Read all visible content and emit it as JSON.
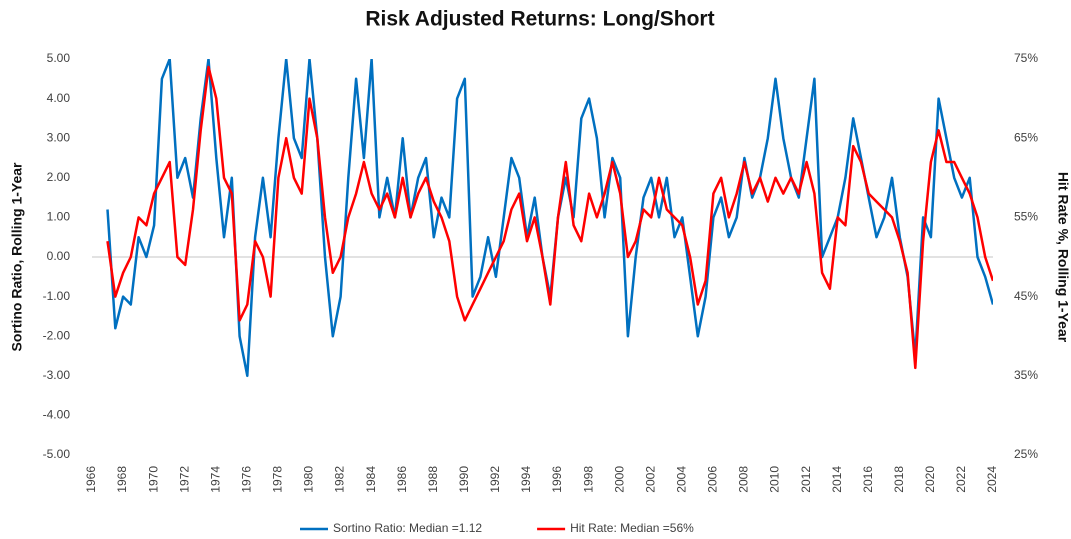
{
  "chart_data": {
    "type": "line",
    "title": "Risk Adjusted Returns: Long/Short",
    "y_label": "Sortino Ratio, Rolling 1-Year",
    "y2_label": "Hit Rate %, Rolling 1-Year",
    "xlim": [
      1966,
      2024
    ],
    "xticks": [
      1966,
      1968,
      1970,
      1972,
      1974,
      1976,
      1978,
      1980,
      1982,
      1984,
      1986,
      1988,
      1990,
      1992,
      1994,
      1996,
      1998,
      2000,
      2002,
      2004,
      2006,
      2008,
      2010,
      2012,
      2014,
      2016,
      2018,
      2020,
      2022,
      2024
    ],
    "ylim": [
      -5,
      5
    ],
    "yticks": [
      {
        "value": -5,
        "label": "-5.00"
      },
      {
        "value": -4,
        "label": "-4.00"
      },
      {
        "value": -3,
        "label": "-3.00"
      },
      {
        "value": -2,
        "label": "-2.00"
      },
      {
        "value": -1,
        "label": "-1.00"
      },
      {
        "value": 0,
        "label": "0.00"
      },
      {
        "value": 1,
        "label": "1.00"
      },
      {
        "value": 2,
        "label": "2.00"
      },
      {
        "value": 3,
        "label": "3.00"
      },
      {
        "value": 4,
        "label": "4.00"
      },
      {
        "value": 5,
        "label": "5.00"
      }
    ],
    "y2lim": [
      25,
      75
    ],
    "y2ticks": [
      {
        "value": 25,
        "label": "25%"
      },
      {
        "value": 35,
        "label": "35%"
      },
      {
        "value": 45,
        "label": "45%"
      },
      {
        "value": 55,
        "label": "55%"
      },
      {
        "value": 65,
        "label": "65%"
      },
      {
        "value": 75,
        "label": "75%"
      }
    ],
    "legend": "bottom",
    "x": [
      1967.0,
      1967.5,
      1968.0,
      1968.5,
      1969.0,
      1969.5,
      1970.0,
      1970.5,
      1971.0,
      1971.5,
      1972.0,
      1972.5,
      1973.0,
      1973.5,
      1974.0,
      1974.5,
      1975.0,
      1975.5,
      1976.0,
      1976.5,
      1977.0,
      1977.5,
      1978.0,
      1978.5,
      1979.0,
      1979.5,
      1980.0,
      1980.5,
      1981.0,
      1981.5,
      1982.0,
      1982.5,
      1983.0,
      1983.5,
      1984.0,
      1984.5,
      1985.0,
      1985.5,
      1986.0,
      1986.5,
      1987.0,
      1987.5,
      1988.0,
      1988.5,
      1989.0,
      1989.5,
      1990.0,
      1990.5,
      1991.0,
      1991.5,
      1992.0,
      1992.5,
      1993.0,
      1993.5,
      1994.0,
      1994.5,
      1995.0,
      1995.5,
      1996.0,
      1996.5,
      1997.0,
      1997.5,
      1998.0,
      1998.5,
      1999.0,
      1999.5,
      2000.0,
      2000.5,
      2001.0,
      2001.5,
      2002.0,
      2002.5,
      2003.0,
      2003.5,
      2004.0,
      2004.5,
      2005.0,
      2005.5,
      2006.0,
      2006.5,
      2007.0,
      2007.5,
      2008.0,
      2008.5,
      2009.0,
      2009.5,
      2010.0,
      2010.5,
      2011.0,
      2011.5,
      2012.0,
      2012.5,
      2013.0,
      2013.5,
      2014.0,
      2014.5,
      2015.0,
      2015.5,
      2016.0,
      2016.5,
      2017.0,
      2017.5,
      2018.0,
      2018.5,
      2019.0,
      2019.5,
      2020.0,
      2020.5,
      2021.0,
      2021.5,
      2022.0,
      2022.5,
      2023.0,
      2023.5,
      2024.0
    ],
    "series": [
      {
        "name": "Sortino Ratio: Median =1.12",
        "color": "#0070c0",
        "axis": "y",
        "values": [
          1.2,
          -1.8,
          -1.0,
          -1.2,
          0.5,
          0.0,
          0.8,
          4.5,
          5.0,
          2.0,
          2.5,
          1.5,
          3.5,
          5.0,
          2.5,
          0.5,
          2.0,
          -2.0,
          -3.0,
          0.5,
          2.0,
          0.5,
          3.0,
          5.0,
          3.0,
          2.5,
          5.0,
          3.0,
          0.0,
          -2.0,
          -1.0,
          2.0,
          4.5,
          2.5,
          5.0,
          1.0,
          2.0,
          1.0,
          3.0,
          1.0,
          2.0,
          2.5,
          0.5,
          1.5,
          1.0,
          4.0,
          4.5,
          -1.0,
          -0.5,
          0.5,
          -0.5,
          1.0,
          2.5,
          2.0,
          0.5,
          1.5,
          0.0,
          -1.0,
          1.0,
          2.0,
          1.0,
          3.5,
          4.0,
          3.0,
          1.0,
          2.5,
          2.0,
          -2.0,
          0.0,
          1.5,
          2.0,
          1.0,
          2.0,
          0.5,
          1.0,
          -0.5,
          -2.0,
          -1.0,
          1.0,
          1.5,
          0.5,
          1.0,
          2.5,
          1.5,
          2.0,
          3.0,
          4.5,
          3.0,
          2.0,
          1.5,
          3.0,
          4.5,
          0.0,
          0.5,
          1.0,
          2.0,
          3.5,
          2.5,
          1.5,
          0.5,
          1.0,
          2.0,
          0.5,
          -0.5,
          -2.5,
          1.0,
          0.5,
          4.0,
          3.0,
          2.0,
          1.5,
          2.0,
          0.0,
          -0.5,
          -1.2
        ]
      },
      {
        "name": "Hit Rate: Median =56%",
        "color": "#ff0000",
        "axis": "y2",
        "values": [
          52,
          45,
          48,
          50,
          55,
          54,
          58,
          60,
          62,
          50,
          49,
          56,
          66,
          74,
          70,
          60,
          58,
          42,
          44,
          52,
          50,
          45,
          60,
          65,
          60,
          58,
          70,
          65,
          55,
          48,
          50,
          55,
          58,
          62,
          58,
          56,
          58,
          55,
          60,
          55,
          58,
          60,
          57,
          55,
          52,
          45,
          42,
          44,
          46,
          48,
          50,
          52,
          56,
          58,
          52,
          55,
          50,
          44,
          55,
          62,
          54,
          52,
          58,
          55,
          58,
          62,
          58,
          50,
          52,
          56,
          55,
          60,
          56,
          55,
          54,
          50,
          44,
          47,
          58,
          60,
          55,
          58,
          62,
          58,
          60,
          57,
          60,
          58,
          60,
          58,
          62,
          58,
          48,
          46,
          55,
          54,
          64,
          62,
          58,
          57,
          56,
          55,
          52,
          48,
          36,
          52,
          62,
          66,
          62,
          62,
          60,
          58,
          55,
          50,
          47
        ]
      }
    ]
  }
}
